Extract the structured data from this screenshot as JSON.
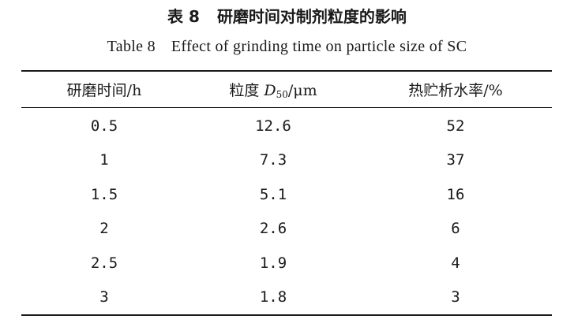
{
  "caption": {
    "cn_number": "表 8",
    "cn_title": "研磨时间对制剂粒度的影响",
    "en_number": "Table 8",
    "en_title": "Effect of grinding time on particle size of SC"
  },
  "header": {
    "col1": "研磨时间/h",
    "col2_prefix": "粒度 ",
    "col2_var": "D",
    "col2_sub": "50",
    "col2_suffix": "/μm",
    "col3": "热贮析水率/%"
  },
  "rows": [
    {
      "time": "0.5",
      "size": "12.6",
      "rate": "52"
    },
    {
      "time": "1",
      "size": "7.3",
      "rate": "37"
    },
    {
      "time": "1.5",
      "size": "5.1",
      "rate": "16"
    },
    {
      "time": "2",
      "size": "2.6",
      "rate": "6"
    },
    {
      "time": "2.5",
      "size": "1.9",
      "rate": "4"
    },
    {
      "time": "3",
      "size": "1.8",
      "rate": "3"
    }
  ]
}
